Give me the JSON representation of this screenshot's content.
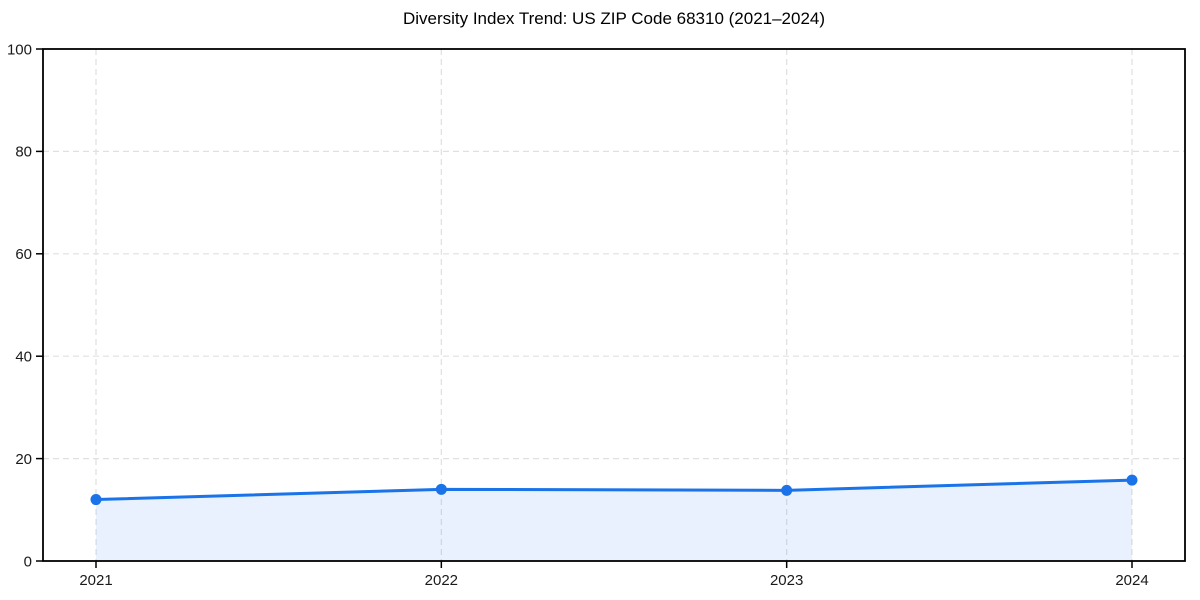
{
  "chart_data": {
    "type": "line",
    "title": "Diversity Index Trend: US ZIP Code 68310 (2021–2024)",
    "x": [
      "2021",
      "2022",
      "2023",
      "2024"
    ],
    "series": [
      {
        "name": "Diversity Index",
        "values": [
          12.0,
          14.0,
          13.8,
          15.8
        ]
      }
    ],
    "xlabel": "",
    "ylabel": "",
    "ylim": [
      0,
      100
    ],
    "yticks": [
      0,
      20,
      40,
      60,
      80,
      100
    ],
    "grid": "dashed",
    "legend": "none",
    "area_fill": true,
    "marker": "circle",
    "colors": {
      "line": "#1a73e8",
      "marker": "#1a73e8",
      "area": "rgba(26,115,232,0.10)",
      "grid": "#e0e0e0",
      "spine": "#000000",
      "tick_text": "#1a1a1a",
      "title_text": "#000000"
    }
  }
}
